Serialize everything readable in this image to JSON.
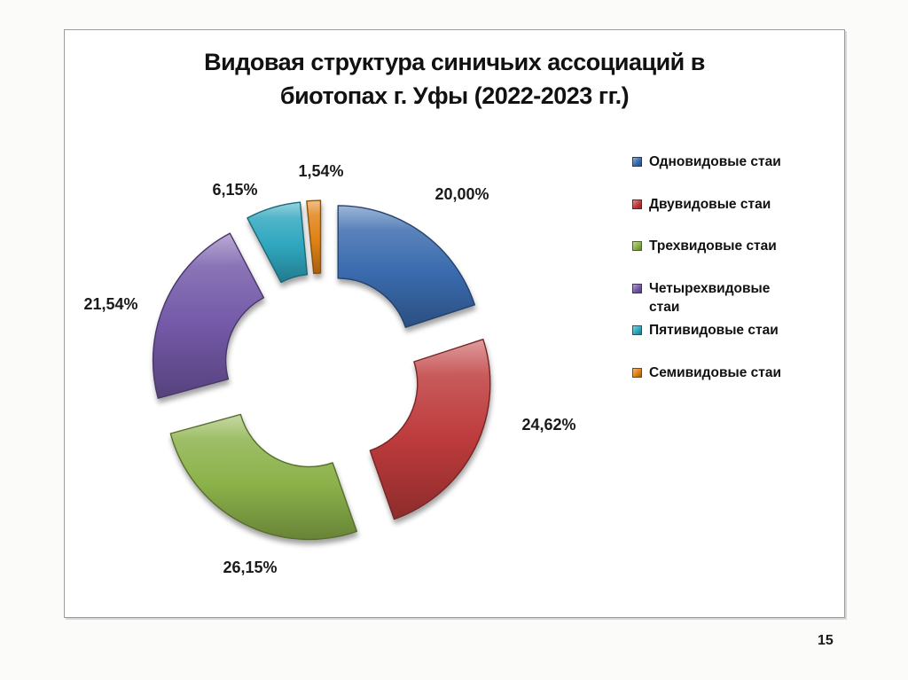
{
  "page": {
    "number": "15"
  },
  "chart": {
    "title_line1": "Видовая структура синичьих ассоциаций в",
    "title_line2": "биотопах г. Уфы (2022-2023 гг.)"
  },
  "chart_data": {
    "type": "pie",
    "subtype": "exploded-doughnut",
    "title": "Видовая структура синичьих ассоциаций в биотопах г. Уфы (2022-2023 гг.)",
    "legend_position": "right",
    "total": 100,
    "series": [
      {
        "name": "Одновидовые стаи",
        "value": 20.0,
        "label": "20,00%",
        "color": "#3a6bae"
      },
      {
        "name": "Двувидовые стаи",
        "value": 24.62,
        "label": "24,62%",
        "color": "#be3b3c"
      },
      {
        "name": "Трехвидовые стаи",
        "value": 26.15,
        "label": "26,15%",
        "color": "#8cb24a"
      },
      {
        "name": "Четырехвидовые стаи",
        "value": 21.54,
        "label": "21,54%",
        "color": "#7459a8"
      },
      {
        "name": "Пятивидовые стаи",
        "value": 6.15,
        "label": "6,15%",
        "color": "#2ea6be"
      },
      {
        "name": "Семивидовые стаи",
        "value": 1.54,
        "label": "1,54%",
        "color": "#e08214"
      }
    ]
  }
}
